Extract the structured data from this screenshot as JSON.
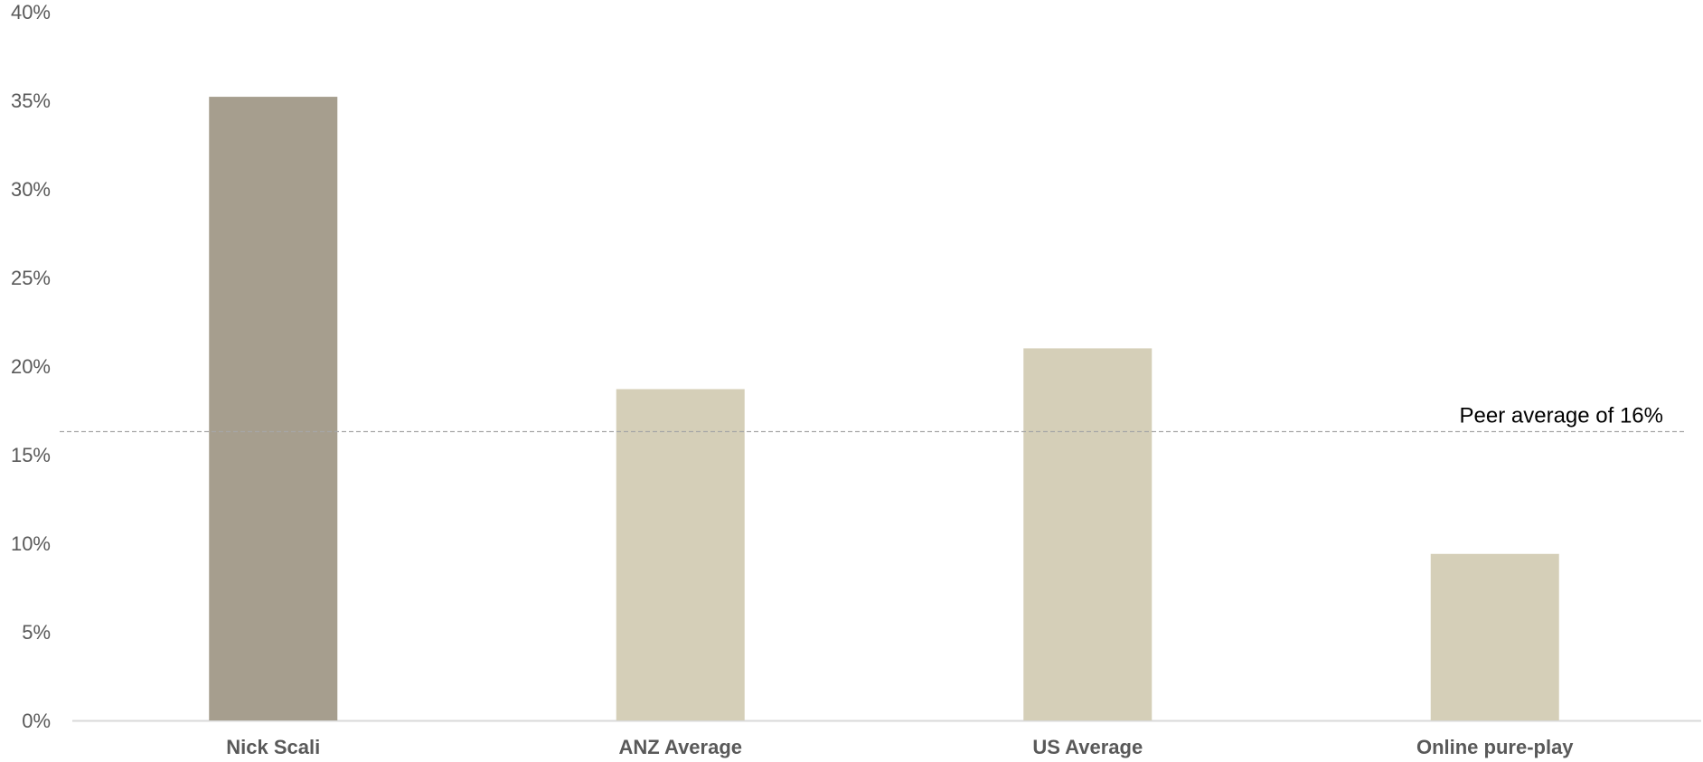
{
  "chart_data": {
    "type": "bar",
    "categories": [
      "Nick Scali",
      "ANZ Average",
      "US Average",
      "Online pure-play"
    ],
    "values": [
      35.2,
      18.7,
      21.0,
      9.4
    ],
    "ylim": [
      0,
      40
    ],
    "yticks": [
      0,
      5,
      10,
      15,
      20,
      25,
      30,
      35,
      40
    ],
    "ytick_labels": [
      "0%",
      "5%",
      "10%",
      "15%",
      "20%",
      "25%",
      "30%",
      "35%",
      "40%"
    ],
    "title": "",
    "xlabel": "",
    "ylabel": "",
    "grid": false,
    "legend": "none",
    "colors": [
      "#a69e8e",
      "#d5cfb8",
      "#d5cfb8",
      "#d5cfb8"
    ],
    "reference_line": {
      "value": 16.3,
      "label": "Peer average of 16%",
      "color": "#a6a6a6",
      "style": "dashed"
    }
  }
}
